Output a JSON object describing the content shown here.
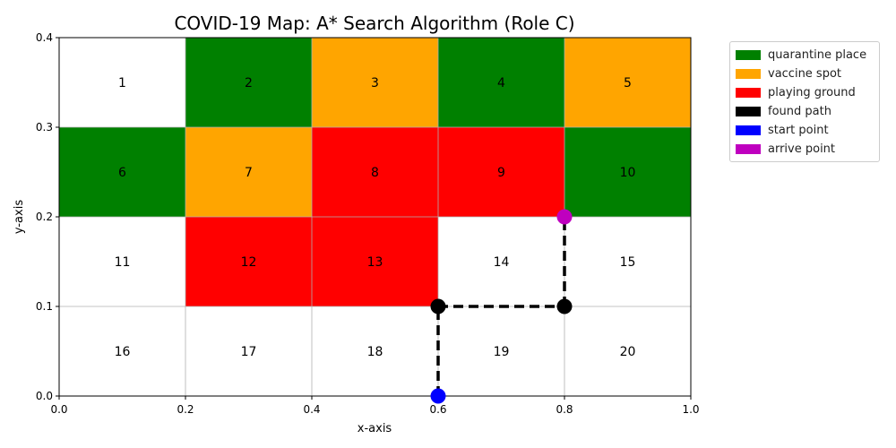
{
  "chart_data": {
    "type": "heatmap",
    "title": "COVID-19 Map: A* Search Algorithm (Role C)",
    "xlabel": "x-axis",
    "ylabel": "y-axis",
    "xlim": [
      0.0,
      1.0
    ],
    "ylim": [
      0.0,
      0.4
    ],
    "xticks": [
      "0.0",
      "0.2",
      "0.4",
      "0.6",
      "0.8",
      "1.0"
    ],
    "yticks": [
      "0.0",
      "0.1",
      "0.2",
      "0.3",
      "0.4"
    ],
    "grid": true,
    "legend_position": "outside top-right",
    "grid_cells": {
      "columns": 5,
      "rows": 4,
      "cell_width": 0.2,
      "cell_height": 0.1,
      "cells": [
        {
          "label": "1",
          "x0": 0.0,
          "y0": 0.3,
          "kind": "empty"
        },
        {
          "label": "2",
          "x0": 0.2,
          "y0": 0.3,
          "kind": "quarantine"
        },
        {
          "label": "3",
          "x0": 0.4,
          "y0": 0.3,
          "kind": "vaccine"
        },
        {
          "label": "4",
          "x0": 0.6,
          "y0": 0.3,
          "kind": "quarantine"
        },
        {
          "label": "5",
          "x0": 0.8,
          "y0": 0.3,
          "kind": "vaccine"
        },
        {
          "label": "6",
          "x0": 0.0,
          "y0": 0.2,
          "kind": "quarantine"
        },
        {
          "label": "7",
          "x0": 0.2,
          "y0": 0.2,
          "kind": "vaccine"
        },
        {
          "label": "8",
          "x0": 0.4,
          "y0": 0.2,
          "kind": "playing"
        },
        {
          "label": "9",
          "x0": 0.6,
          "y0": 0.2,
          "kind": "playing"
        },
        {
          "label": "10",
          "x0": 0.8,
          "y0": 0.2,
          "kind": "quarantine"
        },
        {
          "label": "11",
          "x0": 0.0,
          "y0": 0.1,
          "kind": "empty"
        },
        {
          "label": "12",
          "x0": 0.2,
          "y0": 0.1,
          "kind": "playing"
        },
        {
          "label": "13",
          "x0": 0.4,
          "y0": 0.1,
          "kind": "playing"
        },
        {
          "label": "14",
          "x0": 0.6,
          "y0": 0.1,
          "kind": "empty"
        },
        {
          "label": "15",
          "x0": 0.8,
          "y0": 0.1,
          "kind": "empty"
        },
        {
          "label": "16",
          "x0": 0.0,
          "y0": 0.0,
          "kind": "empty"
        },
        {
          "label": "17",
          "x0": 0.2,
          "y0": 0.0,
          "kind": "empty"
        },
        {
          "label": "18",
          "x0": 0.4,
          "y0": 0.0,
          "kind": "empty"
        },
        {
          "label": "19",
          "x0": 0.6,
          "y0": 0.0,
          "kind": "empty"
        },
        {
          "label": "20",
          "x0": 0.8,
          "y0": 0.0,
          "kind": "empty"
        }
      ]
    },
    "path": {
      "points": [
        {
          "x": 0.6,
          "y": 0.0,
          "role": "start"
        },
        {
          "x": 0.6,
          "y": 0.1,
          "role": "found"
        },
        {
          "x": 0.8,
          "y": 0.1,
          "role": "found"
        },
        {
          "x": 0.8,
          "y": 0.2,
          "role": "arrive"
        }
      ],
      "line_color": "#000000",
      "line_style": "dashed"
    },
    "legend": [
      {
        "label": "quarantine place",
        "color": "#008000"
      },
      {
        "label": "vaccine spot",
        "color": "#FFA500"
      },
      {
        "label": "playing ground",
        "color": "#FF0000"
      },
      {
        "label": "found path",
        "color": "#000000"
      },
      {
        "label": "start point",
        "color": "#0000FF"
      },
      {
        "label": "arrive point",
        "color": "#BF00BF"
      }
    ],
    "colors": {
      "empty": "#FFFFFF",
      "quarantine": "#008000",
      "vaccine": "#FFA500",
      "playing": "#FF0000",
      "found": "#000000",
      "start": "#0000FF",
      "arrive": "#BF00BF",
      "grid": "#B0B0B0"
    }
  }
}
